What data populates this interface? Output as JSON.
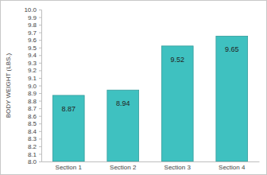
{
  "chart_data": {
    "type": "bar",
    "y_label": "BODY WEIGHT (LBS.)",
    "categories": [
      "Section 1",
      "Section 2",
      "Section 3",
      "Section 4"
    ],
    "values": [
      8.87,
      8.94,
      9.52,
      9.65
    ],
    "color": "#3fc1c0",
    "data_labels": true,
    "ylim": [
      8,
      10
    ],
    "yticks": [
      {
        "value": 8,
        "label": "8.0"
      },
      8.1,
      8.2,
      8.3,
      8.4,
      8.5,
      8.6,
      8.7,
      8.8,
      8.9,
      {
        "value": 9,
        "label": "9.0"
      },
      9.1,
      9.2,
      9.3,
      9.4,
      9.5,
      9.6,
      9.7,
      9.8,
      9.9,
      {
        "value": 10,
        "label": "10.0"
      }
    ]
  }
}
